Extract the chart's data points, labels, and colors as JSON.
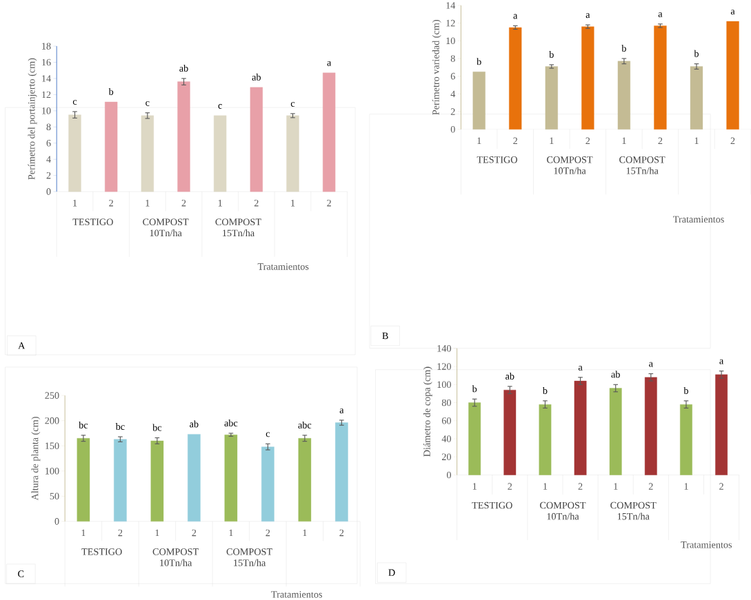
{
  "chart_data": [
    {
      "type": "bar",
      "ylabel": "Perímetro del portainjerto (cm)",
      "xlabel": "Tratamientos",
      "categories": [
        "TESTIGO",
        "COMPOST 10Tn/ha",
        "COMPOST 15Tn/ha",
        null
      ],
      "ylim": [
        0,
        18
      ],
      "yticks": [
        0,
        2,
        4,
        6,
        8,
        10,
        12,
        14,
        16,
        18
      ],
      "annotations": [
        "A"
      ],
      "series": [
        {
          "name": "1",
          "color": "#ddd8c4",
          "values": [
            9.5,
            9.4,
            9.4,
            9.4
          ],
          "errors": [
            0.4,
            0.35,
            null,
            0.25
          ],
          "value_labels": [
            "c",
            "c",
            "c",
            "c"
          ]
        },
        {
          "name": "2",
          "color": "#e8a0a8",
          "values": [
            11.1,
            13.6,
            12.9,
            14.7
          ],
          "errors": [
            null,
            0.4,
            null,
            null
          ],
          "value_labels": [
            "b",
            "ab",
            "ab",
            "a"
          ]
        }
      ]
    },
    {
      "type": "bar",
      "ylabel": "Perímetro variedad (cm)",
      "xlabel": "Tratamientos",
      "categories": [
        "TESTIGO",
        "COMPOST 10Tn/ha",
        "COMPOST 15Tn/ha",
        null
      ],
      "ylim": [
        0,
        14
      ],
      "yticks": [
        0,
        2,
        4,
        6,
        8,
        10,
        12,
        14
      ],
      "annotations": [
        "B"
      ],
      "series": [
        {
          "name": "1",
          "color": "#c4bb94",
          "values": [
            6.5,
            7.1,
            7.7,
            7.1
          ],
          "errors": [
            null,
            0.2,
            0.3,
            0.3
          ],
          "value_labels": [
            "b",
            "b",
            "b",
            "b"
          ]
        },
        {
          "name": "2",
          "color": "#e8720c",
          "values": [
            11.5,
            11.6,
            11.7,
            12.2
          ],
          "errors": [
            0.2,
            0.2,
            0.2,
            null
          ],
          "value_labels": [
            "a",
            "a",
            "a",
            "a"
          ]
        }
      ]
    },
    {
      "type": "bar",
      "ylabel": "Altura de planta (cm)",
      "xlabel": "Tratamientos",
      "categories": [
        "TESTIGO",
        "COMPOST 10Tn/ha",
        "COMPOST 15Tn/ha",
        null
      ],
      "ylim": [
        0,
        250
      ],
      "yticks": [
        0,
        50,
        100,
        150,
        200,
        250
      ],
      "annotations": [
        "C"
      ],
      "series": [
        {
          "name": "1",
          "color": "#9bbb59",
          "values": [
            165,
            160,
            172,
            165
          ],
          "errors": [
            6,
            6,
            3,
            6
          ],
          "value_labels": [
            "bc",
            "bc",
            "abc",
            "abc"
          ]
        },
        {
          "name": "2",
          "color": "#92cddc",
          "values": [
            163,
            173,
            148,
            196
          ],
          "errors": [
            5,
            null,
            6,
            5
          ],
          "value_labels": [
            "bc",
            "ab",
            "c",
            "a"
          ]
        }
      ]
    },
    {
      "type": "bar",
      "ylabel": "Diámetro de copa (cm)",
      "xlabel": "Tratamientos",
      "categories": [
        "TESTIGO",
        "COMPOST 10Tn/ha",
        "COMPOST 15Tn/ha",
        null
      ],
      "ylim": [
        0,
        140
      ],
      "yticks": [
        0,
        20,
        40,
        60,
        80,
        100,
        120,
        140
      ],
      "annotations": [
        "D"
      ],
      "series": [
        {
          "name": "1",
          "color": "#9bbb59",
          "values": [
            80,
            78,
            96,
            78
          ],
          "errors": [
            4,
            4,
            4,
            4
          ],
          "value_labels": [
            "b",
            "b",
            "ab",
            "b"
          ]
        },
        {
          "name": "2",
          "color": "#a33434",
          "values": [
            94,
            104,
            108,
            111
          ],
          "errors": [
            4,
            4,
            4,
            4
          ],
          "value_labels": [
            "ab",
            "a",
            "a",
            "a"
          ]
        }
      ]
    }
  ]
}
